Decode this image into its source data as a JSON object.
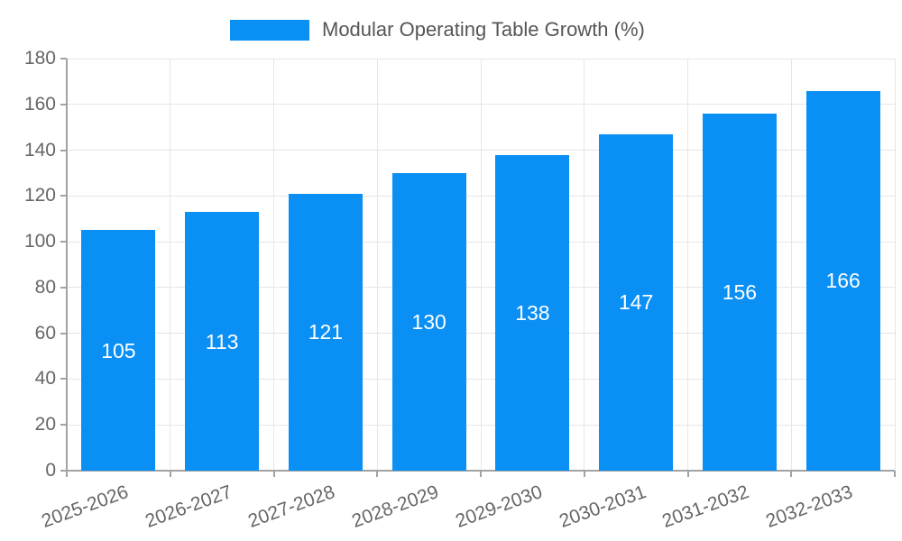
{
  "legend": {
    "label": "Modular Operating Table Growth (%)"
  },
  "chart_data": {
    "type": "bar",
    "title": "",
    "series_name": "Modular Operating Table Growth (%)",
    "categories": [
      "2025-2026",
      "2026-2027",
      "2027-2028",
      "2028-2029",
      "2029-2030",
      "2030-2031",
      "2031-2032",
      "2032-2033"
    ],
    "values": [
      105,
      113,
      121,
      130,
      138,
      147,
      156,
      166
    ],
    "xlabel": "",
    "ylabel": "",
    "ylim": [
      0,
      180
    ],
    "ytick_step": 20,
    "yticks": [
      0,
      20,
      40,
      60,
      80,
      100,
      120,
      140,
      160,
      180
    ],
    "grid": true,
    "legend_position": "top-center",
    "value_labels_position": "inside-center",
    "x_label_rotation_deg": -20,
    "colors": {
      "bar": "#0a8ff5",
      "value_label": "#ffffff",
      "axis": "#a3a3a3",
      "gridline": "#e6e6e6",
      "tick_label": "#666666",
      "legend_text": "#565656"
    }
  }
}
